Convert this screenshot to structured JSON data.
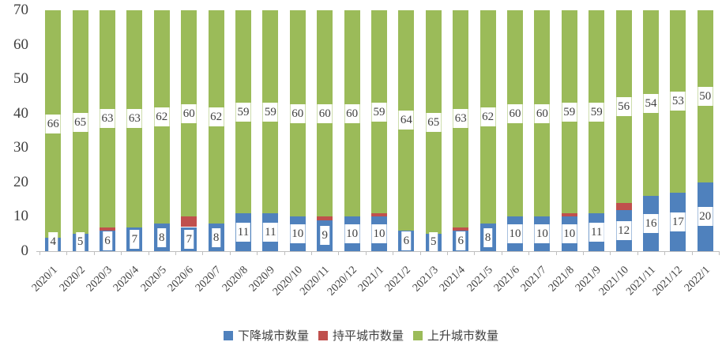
{
  "chart_data": {
    "type": "bar",
    "stacked": true,
    "title": "",
    "xlabel": "",
    "ylabel": "",
    "categories": [
      "2020/1",
      "2020/2",
      "2020/3",
      "2020/4",
      "2020/5",
      "2020/6",
      "2020/7",
      "2020/8",
      "2020/9",
      "2020/10",
      "2020/11",
      "2020/12",
      "2021/1",
      "2021/2",
      "2021/3",
      "2021/4",
      "2021/5",
      "2021/6",
      "2021/7",
      "2021/8",
      "2021/9",
      "2021/10",
      "2021/11",
      "2021/12",
      "2022/1"
    ],
    "series": [
      {
        "key": "declining-cities",
        "name": "下降城市数量",
        "color": "#4F81BD",
        "show_labels": true,
        "values": [
          4,
          5,
          6,
          7,
          8,
          7,
          8,
          11,
          11,
          10,
          9,
          10,
          10,
          6,
          5,
          6,
          8,
          10,
          10,
          10,
          11,
          12,
          16,
          17,
          20
        ]
      },
      {
        "key": "flat-cities",
        "name": "持平城市数量",
        "color": "#C0504D",
        "show_labels": false,
        "values": [
          0,
          0,
          1,
          0,
          0,
          3,
          0,
          0,
          0,
          0,
          1,
          0,
          1,
          0,
          0,
          1,
          0,
          0,
          0,
          1,
          0,
          2,
          0,
          0,
          0
        ]
      },
      {
        "key": "rising-cities",
        "name": "上升城市数量",
        "color": "#9BBB59",
        "show_labels": true,
        "values": [
          66,
          65,
          63,
          63,
          62,
          60,
          62,
          59,
          59,
          60,
          60,
          60,
          59,
          64,
          65,
          63,
          62,
          60,
          60,
          59,
          59,
          56,
          54,
          53,
          50
        ]
      }
    ],
    "ylim": [
      0,
      70
    ],
    "yticks": [
      0,
      10,
      20,
      30,
      40,
      50,
      60,
      70
    ],
    "grid": false,
    "legend_position": "bottom",
    "label_color": "#404040",
    "axis_color": "#bfbfbf",
    "bar_total": 70
  }
}
